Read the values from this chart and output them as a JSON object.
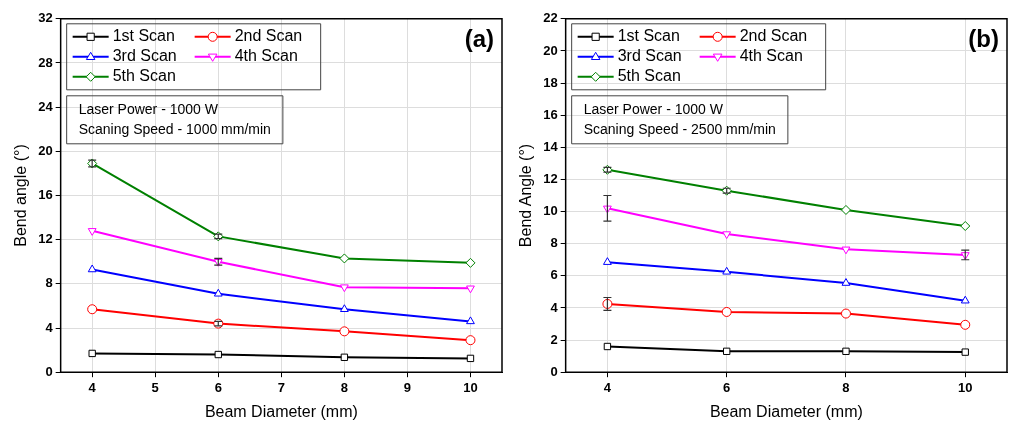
{
  "chart_data": [
    {
      "type": "line",
      "title": "(a)",
      "xlabel": "Beam Diameter (mm)",
      "ylabel": "Bend angle (°)",
      "x": [
        4,
        6,
        8,
        10
      ],
      "xlim": [
        3.5,
        10.5
      ],
      "xticks": [
        4,
        5,
        6,
        7,
        8,
        9,
        10
      ],
      "ylim": [
        0,
        32
      ],
      "yticks": [
        0,
        4,
        8,
        12,
        16,
        20,
        24,
        28,
        32
      ],
      "grid": true,
      "legend": "top left",
      "annotations": [
        "Laser Power - 1000 W",
        "Scaning Speed - 1000 mm/min"
      ],
      "series": [
        {
          "name": "1st Scan",
          "color": "#000000",
          "marker": "square",
          "values": [
            1.7,
            1.6,
            1.35,
            1.25
          ]
        },
        {
          "name": "2nd Scan",
          "color": "#ff0000",
          "marker": "circle",
          "values": [
            5.7,
            4.4,
            3.7,
            2.9
          ],
          "errors": [
            null,
            0.2,
            null,
            null
          ]
        },
        {
          "name": "3rd Scan",
          "color": "#0000ff",
          "marker": "triangle",
          "values": [
            9.3,
            7.1,
            5.7,
            4.6
          ]
        },
        {
          "name": "4th Scan",
          "color": "#ff00ff",
          "marker": "triangle-down",
          "values": [
            12.8,
            10.0,
            7.7,
            7.6
          ],
          "errors": [
            null,
            0.3,
            null,
            null
          ]
        },
        {
          "name": "5th Scan",
          "color": "#008000",
          "marker": "diamond",
          "values": [
            18.9,
            12.3,
            10.3,
            9.9
          ],
          "errors": [
            0.3,
            0.2,
            null,
            null
          ]
        }
      ]
    },
    {
      "type": "line",
      "title": "(b)",
      "xlabel": "Beam Diameter (mm)",
      "ylabel": "Bend Angle (°)",
      "x": [
        4,
        6,
        8,
        10
      ],
      "xlim": [
        3.3,
        10.7
      ],
      "xticks": [
        4,
        6,
        8,
        10
      ],
      "ylim": [
        0,
        22
      ],
      "yticks": [
        0,
        2,
        4,
        6,
        8,
        10,
        12,
        14,
        16,
        18,
        20,
        22
      ],
      "grid": true,
      "legend": "top left",
      "annotations": [
        "Laser Power - 1000 W",
        "Scaning Speed - 2500 mm/min"
      ],
      "series": [
        {
          "name": "1st Scan",
          "color": "#000000",
          "marker": "square",
          "values": [
            1.6,
            1.3,
            1.3,
            1.25
          ]
        },
        {
          "name": "2nd Scan",
          "color": "#ff0000",
          "marker": "circle",
          "values": [
            4.25,
            3.75,
            3.65,
            2.95
          ],
          "errors": [
            0.4,
            null,
            null,
            null
          ]
        },
        {
          "name": "3rd Scan",
          "color": "#0000ff",
          "marker": "triangle",
          "values": [
            6.85,
            6.25,
            5.55,
            4.45
          ]
        },
        {
          "name": "4th Scan",
          "color": "#ff00ff",
          "marker": "triangle-down",
          "values": [
            10.2,
            8.6,
            7.65,
            7.3
          ],
          "errors": [
            0.8,
            null,
            null,
            0.3
          ]
        },
        {
          "name": "5th Scan",
          "color": "#008000",
          "marker": "diamond",
          "values": [
            12.6,
            11.3,
            10.1,
            9.1
          ],
          "errors": [
            0.15,
            0.15,
            null,
            null
          ]
        }
      ]
    }
  ]
}
